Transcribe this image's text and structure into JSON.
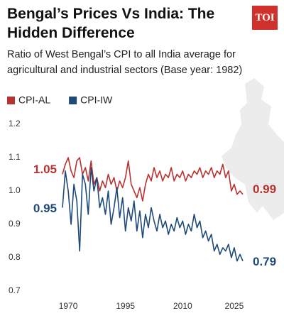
{
  "chart_data": {
    "type": "line",
    "title": "Bengal’s Prices Vs India: The Hidden Difference",
    "subtitle": "Ratio of West Bengal’s CPI to all India average for agricultural and industrial sectors (Base year: 1982)",
    "logo": "TOI",
    "categories": [
      null,
      null,
      "1970",
      null,
      null,
      null,
      null,
      null,
      null,
      null,
      null,
      null,
      null,
      null,
      null,
      null,
      null,
      null,
      null,
      null,
      null,
      null,
      "1995",
      null,
      null,
      null,
      null,
      null,
      null,
      null,
      null,
      null,
      null,
      null,
      null,
      null,
      null,
      null,
      null,
      null,
      null,
      null,
      "2010",
      null,
      null,
      null,
      null,
      null,
      null,
      null,
      null,
      null,
      null,
      null,
      null,
      null,
      null,
      null,
      null,
      null,
      "2025",
      null,
      null,
      null
    ],
    "series": [
      {
        "name": "CPI-AL",
        "color": "#b8322f",
        "values": [
          1.05,
          1.08,
          1.1,
          1.06,
          1.04,
          1.09,
          1.1,
          1.05,
          1.07,
          1.03,
          1.09,
          1.02,
          1.04,
          1.0,
          1.03,
          1.01,
          1.05,
          1.02,
          1.04,
          1.0,
          1.03,
          1.01,
          1.04,
          1.09,
          1.02,
          1.0,
          0.98,
          1.01,
          0.97,
          1.02,
          1.05,
          1.03,
          1.07,
          1.04,
          1.06,
          1.03,
          1.05,
          1.04,
          1.07,
          1.03,
          1.05,
          1.04,
          1.06,
          1.03,
          1.05,
          1.04,
          1.06,
          1.05,
          1.07,
          1.04,
          1.06,
          1.05,
          1.07,
          1.04,
          1.06,
          1.05,
          1.08,
          1.04,
          1.06,
          1.0,
          1.02,
          0.99,
          1.0,
          0.99
        ],
        "value_labels": [
          "1.05",
          null,
          null,
          null,
          null,
          null,
          null,
          null,
          null,
          null,
          null,
          null,
          null,
          null,
          null,
          null,
          null,
          null,
          null,
          null,
          null,
          null,
          null,
          null,
          null,
          null,
          null,
          null,
          null,
          null,
          null,
          null,
          null,
          null,
          null,
          null,
          null,
          null,
          null,
          null,
          null,
          null,
          null,
          null,
          null,
          null,
          null,
          null,
          null,
          null,
          null,
          null,
          null,
          null,
          null,
          null,
          null,
          null,
          null,
          null,
          null,
          null,
          null,
          "0.99"
        ]
      },
      {
        "name": "CPI-IW",
        "color": "#1f4a78",
        "values": [
          0.95,
          1.06,
          1.0,
          0.9,
          1.02,
          0.97,
          0.82,
          1.05,
          1.02,
          0.93,
          1.07,
          1.0,
          1.04,
          0.95,
          0.98,
          0.93,
          1.0,
          0.9,
          0.95,
          1.01,
          0.92,
          0.98,
          0.88,
          0.95,
          0.91,
          0.97,
          0.88,
          0.94,
          0.86,
          0.93,
          0.89,
          0.95,
          0.91,
          0.88,
          0.93,
          0.89,
          0.91,
          0.87,
          0.9,
          0.88,
          0.92,
          0.89,
          0.91,
          0.87,
          0.9,
          0.88,
          0.93,
          0.89,
          0.91,
          0.86,
          0.88,
          0.85,
          0.87,
          0.82,
          0.84,
          0.81,
          0.83,
          0.82,
          0.84,
          0.8,
          0.83,
          0.79,
          0.81,
          0.79
        ],
        "value_labels": [
          "0.95",
          null,
          null,
          null,
          null,
          null,
          null,
          null,
          null,
          null,
          null,
          null,
          null,
          null,
          null,
          null,
          null,
          null,
          null,
          null,
          null,
          null,
          null,
          null,
          null,
          null,
          null,
          null,
          null,
          null,
          null,
          null,
          null,
          null,
          null,
          null,
          null,
          null,
          null,
          null,
          null,
          null,
          null,
          null,
          null,
          null,
          null,
          null,
          null,
          null,
          null,
          null,
          null,
          null,
          null,
          null,
          null,
          null,
          null,
          null,
          null,
          null,
          null,
          "0.79"
        ]
      }
    ],
    "ylim": [
      0.7,
      1.2
    ],
    "yticks": [
      0.7,
      0.8,
      0.9,
      {
        "value": 1,
        "label": "1.0"
      },
      1.1,
      1.2
    ],
    "grid": false
  }
}
